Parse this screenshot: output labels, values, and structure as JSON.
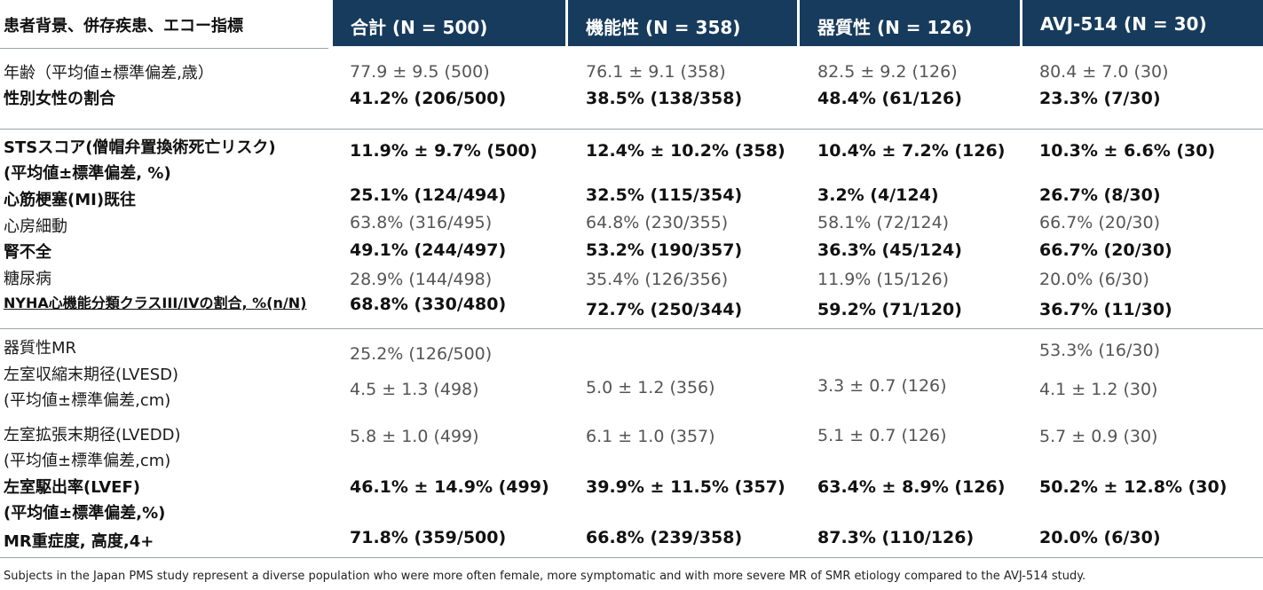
{
  "header": {
    "label": "患者背景、併存疾患、エコー指標",
    "cols": [
      "合計 (N = 500)",
      "機能性 (N = 358)",
      "器質性 (N = 126)",
      "AVJ-514 (N = 30)"
    ],
    "bg_color": "#173b5c"
  },
  "rows": [
    {
      "label": "年齢（平均値±標準偏差,歳）",
      "bold": false,
      "values": [
        "77.9 ± 9.5 (500)",
        "76.1 ± 9.1 (358)",
        "82.5 ± 9.2 (126)",
        "80.4 ± 7.0 (30)"
      ]
    },
    {
      "label": "性別女性の割合",
      "bold": true,
      "values": [
        "41.2% (206/500)",
        "38.5% (138/358)",
        "48.4% (61/126)",
        "23.3% (7/30)"
      ]
    },
    {
      "label": "STSスコア(僧帽弁置換術死亡リスク)",
      "label2": "(平均値±標準偏差, %)",
      "bold": true,
      "values": [
        "11.9% ± 9.7% (500)",
        "12.4% ± 10.2% (358)",
        "10.4% ± 7.2% (126)",
        "10.3% ± 6.6% (30)"
      ]
    },
    {
      "label": "心筋梗塞(MI)既往",
      "bold": true,
      "values": [
        "25.1% (124/494)",
        "32.5% (115/354)",
        "3.2% (4/124)",
        "26.7% (8/30)"
      ]
    },
    {
      "label": "心房細動",
      "bold": false,
      "values": [
        "63.8% (316/495)",
        "64.8% (230/355)",
        "58.1% (72/124)",
        "66.7% (20/30)"
      ]
    },
    {
      "label": "腎不全",
      "bold": true,
      "values": [
        "49.1% (244/497)",
        "53.2% (190/357)",
        "36.3% (45/124)",
        "66.7% (20/30)"
      ]
    },
    {
      "label": "糖尿病",
      "bold": false,
      "values": [
        "28.9% (144/498)",
        "35.4% (126/356)",
        "11.9% (15/126)",
        "20.0% (6/30)"
      ]
    },
    {
      "label": "NYHA心機能分類クラスIII/IVの割合, %(n/N)",
      "bold": true,
      "values": [
        "68.8% (330/480)",
        "72.7% (250/344)",
        "59.2% (71/120)",
        "36.7% (11/30)"
      ]
    },
    {
      "label": "器質性MR",
      "bold": false,
      "values": [
        "25.2% (126/500)",
        "",
        "",
        "53.3% (16/30)"
      ]
    },
    {
      "label": "左室収縮末期径(LVESD)",
      "label2": "(平均値±標準偏差,cm)",
      "bold": false,
      "values": [
        "4.5 ± 1.3 (498)",
        "5.0 ± 1.2 (356)",
        "3.3 ± 0.7 (126)",
        "4.1 ± 1.2 (30)"
      ]
    },
    {
      "label": "左室拡張末期径(LVEDD)",
      "label2": "(平均値±標準偏差,cm)",
      "bold": false,
      "values": [
        "5.8 ± 1.0 (499)",
        "6.1 ± 1.0 (357)",
        "5.1 ± 0.7 (126)",
        "5.7 ± 0.9 (30)"
      ]
    },
    {
      "label": "左室駆出率(LVEF)",
      "label2": "(平均値±標準偏差,%)",
      "bold": true,
      "values": [
        "46.1% ± 14.9% (499)",
        "39.9% ± 11.5% (357)",
        "63.4% ± 8.9% (126)",
        "50.2% ± 12.8% (30)"
      ]
    },
    {
      "label": "MR重症度, 高度,4+",
      "bold": true,
      "values": [
        "71.8% (359/500)",
        "66.8% (239/358)",
        "87.3% (110/126)",
        "20.0% (6/30)"
      ]
    }
  ],
  "footnote": "Subjects in the Japan PMS study represent a diverse population who were more often female, more symptomatic and with more severe MR of SMR etiology compared to the AVJ-514 study."
}
